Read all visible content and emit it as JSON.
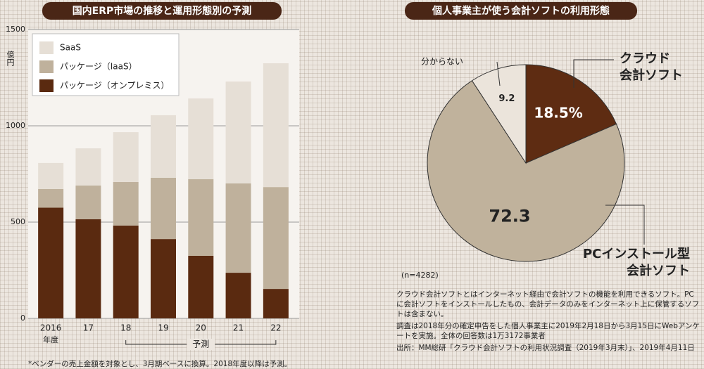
{
  "chart_data": [
    {
      "type": "bar",
      "stacked": true,
      "title": "国内ERP市場の推移と運用形態別の予測",
      "y_unit": "億円",
      "categories": [
        "2016",
        "17",
        "18",
        "19",
        "20",
        "21",
        "22"
      ],
      "year_label": "年度",
      "forecast_label": "予測",
      "series": [
        {
          "name": "パッケージ（オンプレミス）",
          "color": "#5a2a10",
          "values": [
            575,
            515,
            482,
            412,
            325,
            237,
            153
          ]
        },
        {
          "name": "パッケージ（IaaS）",
          "color": "#bfb19c",
          "values": [
            97,
            175,
            226,
            318,
            398,
            464,
            529
          ]
        },
        {
          "name": "SaaS",
          "color": "#e6dfd6",
          "values": [
            135,
            193,
            259,
            325,
            419,
            529,
            643
          ]
        }
      ],
      "ylim": [
        0,
        1500
      ],
      "yticks": [
        0,
        500,
        1000,
        1500
      ],
      "grid": true,
      "footnote": "*ベンダーの売上金額を対象とし、3月期ベースに換算。2018年度以降は予測。"
    },
    {
      "type": "pie",
      "title": "個人事業主が使う会計ソフトの利用形態",
      "categories": [
        [
          "クラウド",
          "会計ソフト"
        ],
        [
          "PCインストール型",
          "会計ソフト"
        ],
        [
          "分からない"
        ]
      ],
      "values": [
        18.5,
        72.3,
        9.2
      ],
      "value_labels": [
        "18.5%",
        "72.3",
        "9.2"
      ],
      "colors": [
        "#5e2c12",
        "#c0b29c",
        "#ebe4db"
      ],
      "sample_size": "(n=4282)",
      "notes": [
        "クラウド会計ソフトとはインターネット経由で会計ソフトの機能を利用できるソフト。PCに会計ソフトをインストールしたもの、会計データのみをインターネット上に保管するソフトは含まない。",
        "調査は2018年分の確定申告をした個人事業主に2019年2月18日から3月15日にWebアンケートを実施。全体の回答数は1万3172事業者",
        "出所：MM総研「クラウド会計ソフトの利用状況調査（2019年3月末）」、2019年4月11日"
      ]
    }
  ]
}
